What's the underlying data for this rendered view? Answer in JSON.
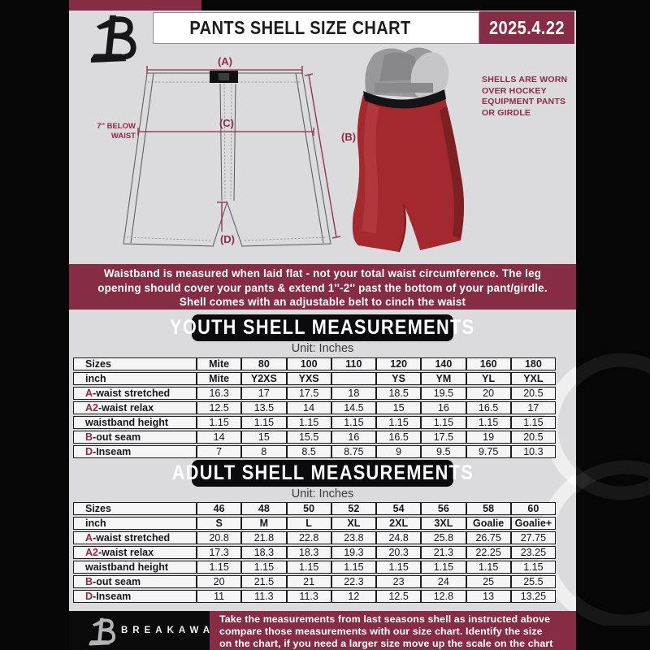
{
  "colors": {
    "maroon": "#862C44",
    "label_accent": "#8C2B44",
    "page_black": "#060606",
    "content_bg": "#DBDBDD",
    "table_cell_bg": "#F5F5F6",
    "pants_red": "#A4292E"
  },
  "header": {
    "title": "PANTS SHELL SIZE CHART",
    "date": "2025.4.22"
  },
  "diagram": {
    "label_a": "(A)",
    "label_b": "(B)",
    "label_c": "(C)",
    "label_d": "(D)",
    "waist_note_line1": "7'' BELOW",
    "waist_note_line2": "WAIST",
    "side_note_lines": [
      "SHELLS ARE WORN",
      "OVER HOCKEY",
      "EQUIPMENT PANTS",
      "OR GIRDLE"
    ]
  },
  "info_banner": {
    "lines": [
      "Waistband is measured when laid flat - not your total waist circumference. The leg",
      "opening should cover your pants & extend 1''-2'' past the bottom of your pant/girdle.",
      "Shell comes with an adjustable belt to cinch the waist"
    ]
  },
  "sections": {
    "youth": {
      "title": "YOUTH SHELL MEASUREMENTS",
      "unit": "Unit: Inches",
      "table": {
        "rows": [
          {
            "prefix": "",
            "label": "Sizes",
            "values": [
              "Mite",
              "80",
              "100",
              "110",
              "120",
              "140",
              "160",
              "180"
            ]
          },
          {
            "prefix": "",
            "label": "inch",
            "values": [
              "Mite",
              "Y2XS",
              "YXS",
              "",
              "YS",
              "YM",
              "YL",
              "YXL"
            ]
          },
          {
            "prefix": "A",
            "label": "-waist stretched",
            "values": [
              "16.3",
              "17",
              "17.5",
              "18",
              "18.5",
              "19.5",
              "20",
              "20.5"
            ]
          },
          {
            "prefix": "A2",
            "label": "-waist relax",
            "values": [
              "12.5",
              "13.5",
              "14",
              "14.5",
              "15",
              "16",
              "16.5",
              "17"
            ]
          },
          {
            "prefix": "",
            "label": "waistband height",
            "values": [
              "1.15",
              "1.15",
              "1.15",
              "1.15",
              "1.15",
              "1.15",
              "1.15",
              "1.15"
            ]
          },
          {
            "prefix": "B",
            "label": "-out seam",
            "values": [
              "14",
              "15",
              "15.5",
              "16",
              "16.5",
              "17.5",
              "19",
              "20.5"
            ]
          },
          {
            "prefix": "D",
            "label": "-Inseam",
            "values": [
              "7",
              "8",
              "8.5",
              "8.75",
              "9",
              "9.5",
              "9.75",
              "10.3"
            ]
          }
        ]
      }
    },
    "adult": {
      "title": "ADULT SHELL MEASUREMENTS",
      "unit": "Unit: Inches",
      "table": {
        "rows": [
          {
            "prefix": "",
            "label": "Sizes",
            "values": [
              "46",
              "48",
              "50",
              "52",
              "54",
              "56",
              "58",
              "60"
            ]
          },
          {
            "prefix": "",
            "label": "inch",
            "values": [
              "S",
              "M",
              "L",
              "XL",
              "2XL",
              "3XL",
              "Goalie",
              "Goalie+"
            ]
          },
          {
            "prefix": "A",
            "label": "-waist stretched",
            "values": [
              "20.8",
              "21.8",
              "22.8",
              "23.8",
              "24.8",
              "25.8",
              "26.75",
              "27.75"
            ]
          },
          {
            "prefix": "A2",
            "label": "-waist relax",
            "values": [
              "17.3",
              "18.3",
              "18.3",
              "19.3",
              "20.3",
              "21.3",
              "22.25",
              "23.25"
            ]
          },
          {
            "prefix": "",
            "label": "waistband height",
            "values": [
              "1.15",
              "1.15",
              "1.15",
              "1.15",
              "1.15",
              "1.15",
              "1.15",
              "1.15"
            ]
          },
          {
            "prefix": "B",
            "label": "-out seam",
            "values": [
              "20",
              "21.5",
              "21",
              "22.3",
              "23",
              "24",
              "25",
              "25.5"
            ]
          },
          {
            "prefix": "D",
            "label": "-Inseam",
            "values": [
              "11",
              "11.3",
              "11.3",
              "12",
              "12.5",
              "12.8",
              "13",
              "13.25"
            ]
          }
        ]
      }
    }
  },
  "footer": {
    "brand": "BREAKAWAY",
    "lines": [
      "Take the measurements from last seasons shell as instructed above",
      "compare those measurements  with our size chart. Identify the size",
      "on the chart, if you need a larger size move up the scale on the chart"
    ]
  }
}
